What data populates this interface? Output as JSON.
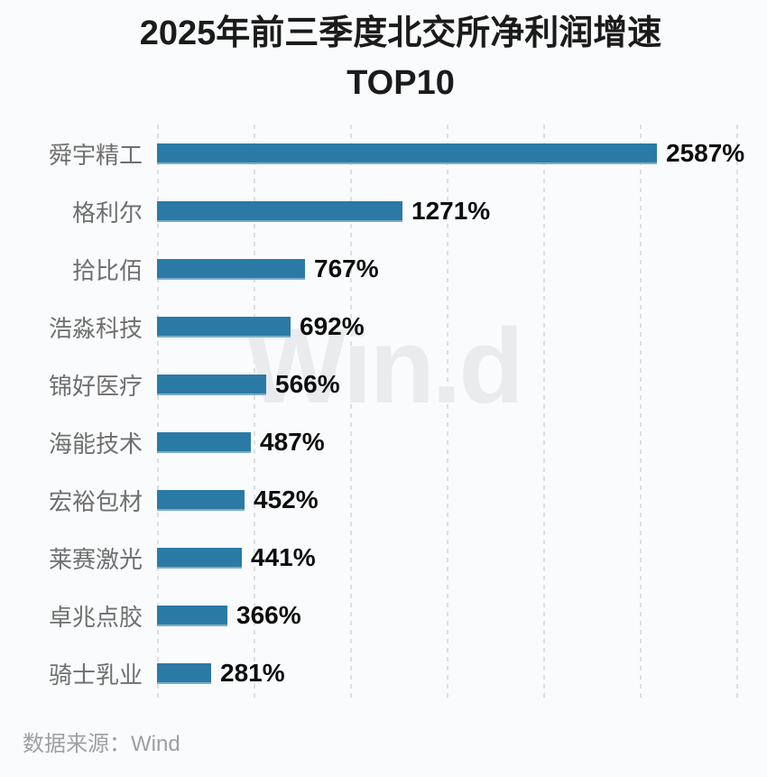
{
  "title": {
    "line1": "2025年前三季度北交所净利润增速",
    "line2": "TOP10"
  },
  "watermark": "Win.d",
  "source_note": "数据来源：Wind",
  "colors": {
    "bar": "#2b7aa6",
    "background": "#fafbfc",
    "gridline": "#dcdfe3",
    "category_label": "#6f6f6f",
    "value_label": "#0d0d0d",
    "title_text": "#1b1b1b",
    "watermark_text": "#e9ebed",
    "source_text": "#9c9fa4"
  },
  "chart_data": {
    "type": "bar",
    "orientation": "horizontal",
    "title": "2025年前三季度北交所净利润增速 TOP10",
    "categories": [
      "舜宇精工",
      "格利尔",
      "拾比佰",
      "浩淼科技",
      "锦好医疗",
      "海能技术",
      "宏裕包材",
      "莱赛激光",
      "卓兆点胶",
      "骑士乳业"
    ],
    "values": [
      2587,
      1271,
      767,
      692,
      566,
      487,
      452,
      441,
      366,
      281
    ],
    "value_labels": [
      "2587%",
      "1271%",
      "767%",
      "692%",
      "566%",
      "487%",
      "452%",
      "441%",
      "366%",
      "281%"
    ],
    "value_suffix": "%",
    "xlabel": "",
    "ylabel": "",
    "xlim": [
      0,
      3000
    ],
    "grid_step": 500,
    "grid": "vertical-dashed",
    "legend": "none",
    "bars_sorted": "descending"
  }
}
